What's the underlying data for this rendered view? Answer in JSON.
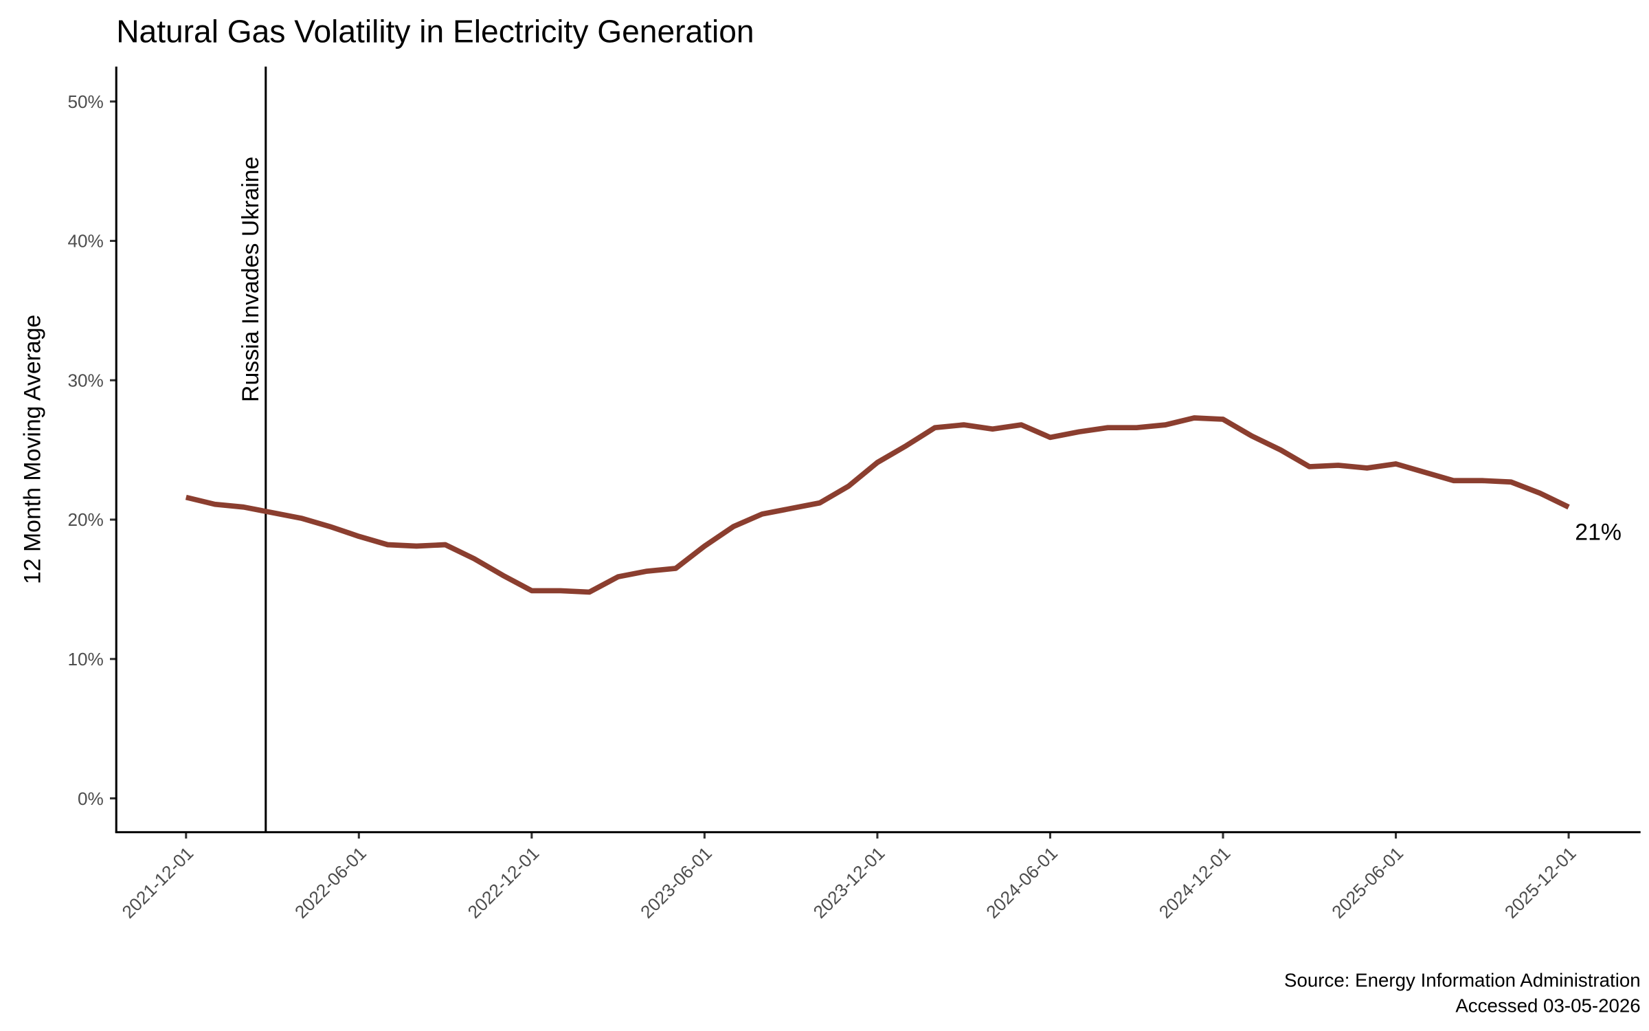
{
  "chart_data": {
    "type": "line",
    "title": "Natural Gas Volatility in Electricity Generation",
    "xlabel": "",
    "ylabel": "12 Month Moving Average",
    "ylim": [
      0,
      50
    ],
    "y_ticks": [
      "0%",
      "10%",
      "20%",
      "30%",
      "40%",
      "50%"
    ],
    "y_tick_values": [
      0,
      10,
      20,
      30,
      40,
      50
    ],
    "x_ticks": [
      "2021-12-01",
      "2022-06-01",
      "2022-12-01",
      "2023-06-01",
      "2023-12-01",
      "2024-06-01",
      "2024-12-01",
      "2025-06-01",
      "2025-12-01"
    ],
    "grid": false,
    "line_color": "#8B3E2F",
    "x": [
      "2021-12",
      "2022-01",
      "2022-02",
      "2022-03",
      "2022-04",
      "2022-05",
      "2022-06",
      "2022-07",
      "2022-08",
      "2022-09",
      "2022-10",
      "2022-11",
      "2022-12",
      "2023-01",
      "2023-02",
      "2023-03",
      "2023-04",
      "2023-05",
      "2023-06",
      "2023-07",
      "2023-08",
      "2023-09",
      "2023-10",
      "2023-11",
      "2023-12",
      "2024-01",
      "2024-02",
      "2024-03",
      "2024-04",
      "2024-05",
      "2024-06",
      "2024-07",
      "2024-08",
      "2024-09",
      "2024-10",
      "2024-11",
      "2024-12",
      "2025-01",
      "2025-02",
      "2025-03",
      "2025-04",
      "2025-05",
      "2025-06",
      "2025-07",
      "2025-08",
      "2025-09",
      "2025-10",
      "2025-11",
      "2025-12"
    ],
    "values": [
      21.6,
      21.1,
      20.9,
      20.5,
      20.1,
      19.5,
      18.8,
      18.2,
      18.1,
      18.2,
      17.2,
      16.0,
      14.9,
      14.9,
      14.8,
      15.9,
      16.3,
      16.5,
      18.1,
      19.5,
      20.4,
      20.8,
      21.2,
      22.4,
      24.1,
      25.3,
      26.6,
      26.8,
      26.5,
      26.8,
      25.9,
      26.3,
      26.6,
      26.6,
      26.8,
      27.3,
      27.2,
      26.0,
      25.0,
      23.8,
      23.9,
      23.7,
      24.0,
      23.4,
      22.8,
      22.8,
      22.7,
      21.9,
      20.9
    ],
    "end_label": "21%",
    "annotation": {
      "label": "Russia Invades Ukraine",
      "date": "2022-02-24"
    },
    "caption_source": "Source: Energy Information Administration",
    "caption_accessed": "Accessed 03-05-2026"
  }
}
